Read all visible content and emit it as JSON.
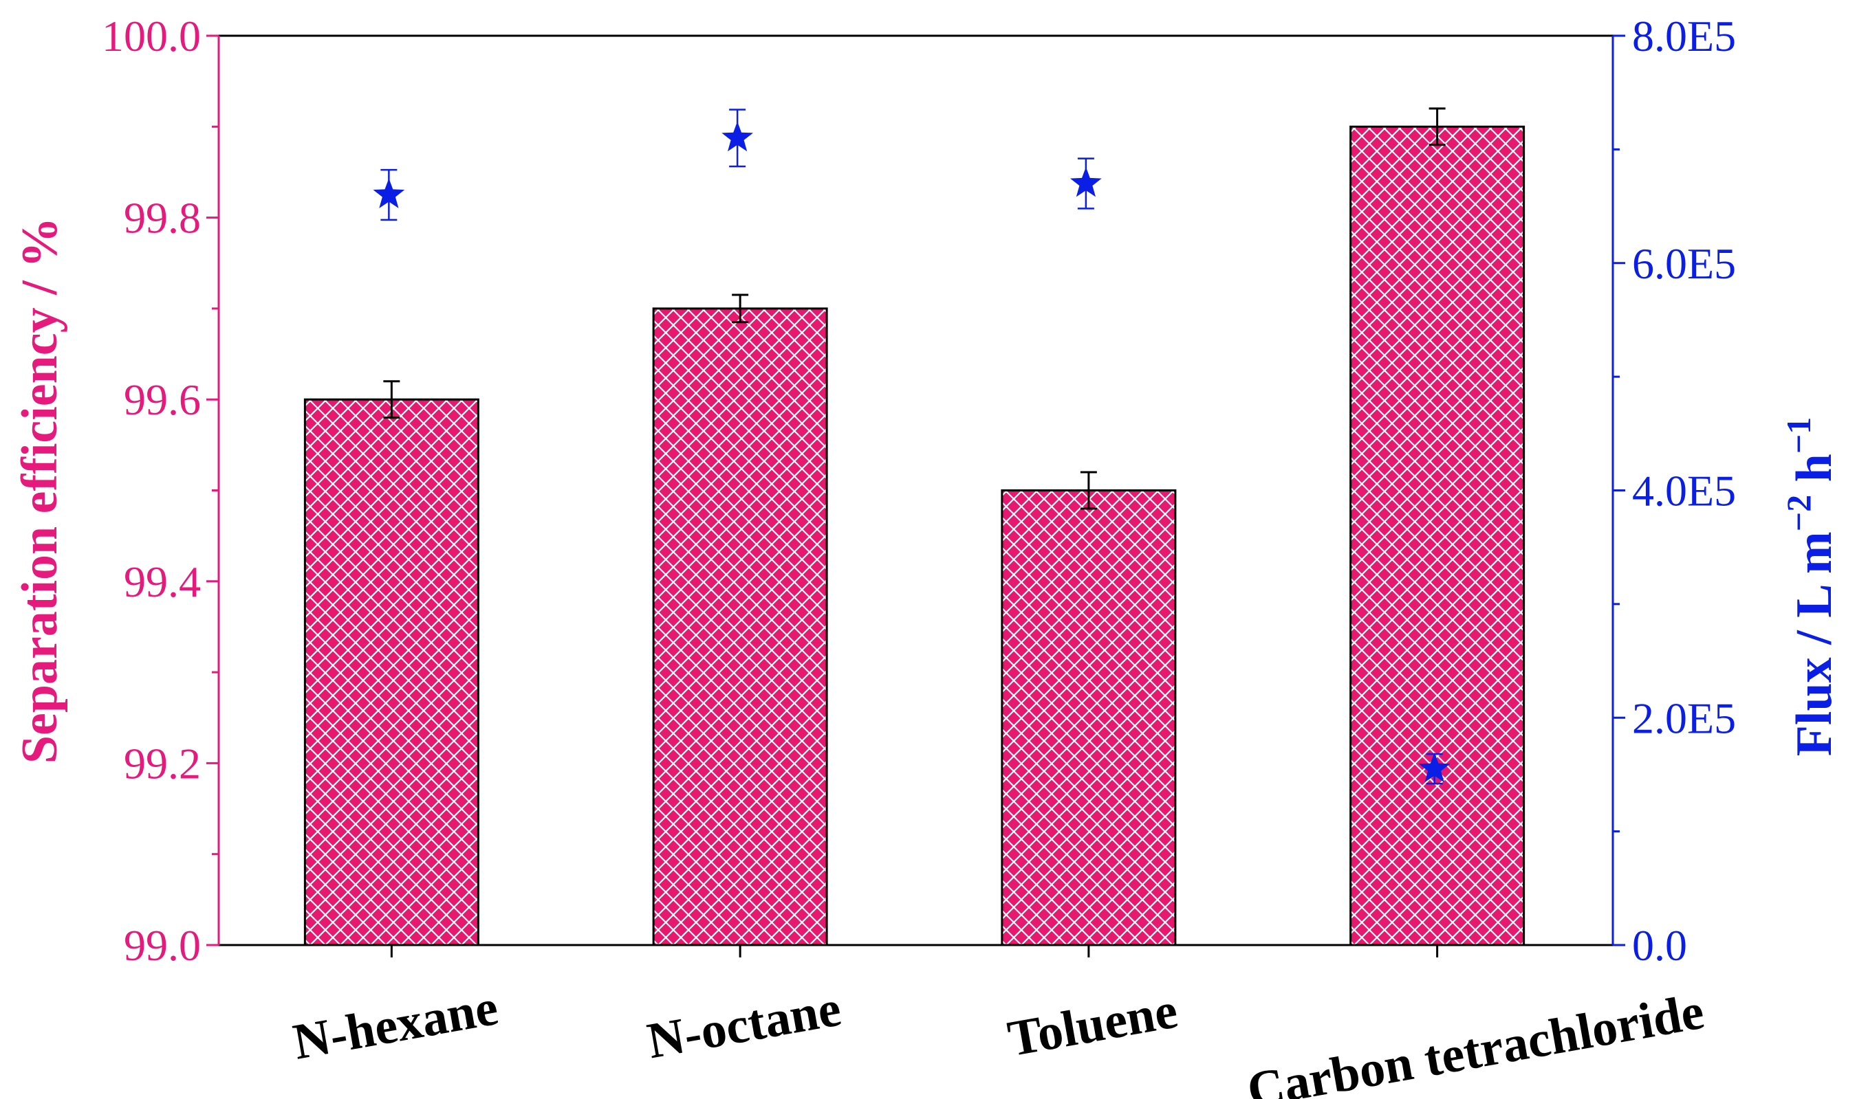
{
  "colors": {
    "left_axis": "#e6197d",
    "right_axis": "#0a1ee6",
    "bar_fill": "#e6196e",
    "hatch": "#ffffff",
    "frame": "#000000",
    "star": "#0a1ee6"
  },
  "chart_data": {
    "type": "bar",
    "categories": [
      "N-hexane",
      "N-octane",
      "Toluene",
      "Carbon tetrachloride"
    ],
    "series": [
      {
        "name": "Separation efficiency",
        "axis": "left",
        "type": "bar",
        "values": [
          99.6,
          99.7,
          99.5,
          99.9
        ],
        "errors": [
          0.02,
          0.015,
          0.02,
          0.02
        ]
      },
      {
        "name": "Flux",
        "axis": "right",
        "type": "scatter",
        "marker": "star",
        "values": [
          660000,
          710000,
          670000,
          155000
        ],
        "errors": [
          22000,
          25000,
          22000,
          13000
        ]
      }
    ],
    "ylabel": "Separation efficiency / %",
    "ylim": [
      99.0,
      100.0
    ],
    "yticks": [
      "99.0",
      "99.2",
      "99.4",
      "99.6",
      "99.8",
      "100.0"
    ],
    "y2label_main": "Flux / L m",
    "y2label_exp1": "−2",
    "y2label_unit": " h",
    "y2label_exp2": "−1",
    "y2lim": [
      0,
      800000
    ],
    "y2ticks": [
      "0.0",
      "2.0E5",
      "4.0E5",
      "6.0E5",
      "8.0E5"
    ],
    "grid": false
  }
}
